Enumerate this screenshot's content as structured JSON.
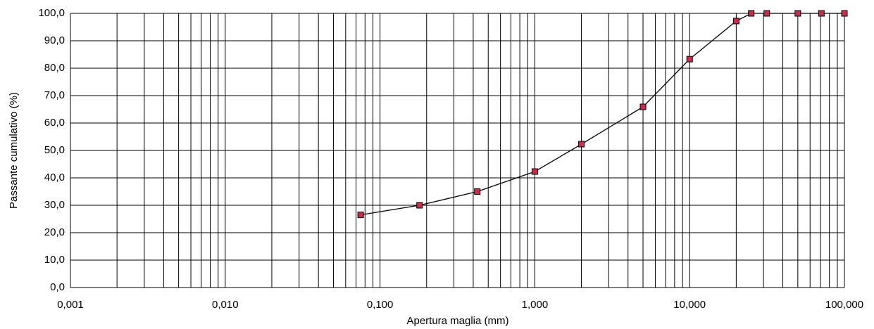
{
  "chart_data": {
    "type": "line",
    "x_label": "Apertura maglia (mm)",
    "y_label": "Passante cumulativo (%)",
    "x": [
      0.075,
      0.18,
      0.425,
      1,
      2,
      5,
      10,
      20,
      25,
      31.5,
      50,
      71,
      100
    ],
    "series": [
      {
        "color": "#000000",
        "marker_color": "#c2304e",
        "values": [
          26.5,
          30.0,
          35.0,
          42.3,
          52.3,
          65.9,
          83.3,
          97.2,
          100,
          100,
          100,
          100,
          100
        ]
      }
    ],
    "xlog": true,
    "grid": true,
    "xlim": [
      0.001,
      100
    ],
    "ylim": [
      0,
      100
    ],
    "xticks": [
      {
        "value": 0.001,
        "label": "0,001"
      },
      {
        "value": 0.01,
        "label": "0,010"
      },
      {
        "value": 0.1,
        "label": "0,100"
      },
      {
        "value": 1,
        "label": "1,000"
      },
      {
        "value": 10,
        "label": "10,000"
      },
      {
        "value": 100,
        "label": "100,000"
      }
    ],
    "yticks": [
      {
        "value": 0,
        "label": "0,0"
      },
      {
        "value": 10,
        "label": "10,0"
      },
      {
        "value": 20,
        "label": "20,0"
      },
      {
        "value": 30,
        "label": "30,0"
      },
      {
        "value": 40,
        "label": "40,0"
      },
      {
        "value": 50,
        "label": "50,0"
      },
      {
        "value": 60,
        "label": "60,0"
      },
      {
        "value": 70,
        "label": "70,0"
      },
      {
        "value": 80,
        "label": "80,0"
      },
      {
        "value": 90,
        "label": "90,0"
      },
      {
        "value": 100,
        "label": "100,0"
      }
    ]
  }
}
